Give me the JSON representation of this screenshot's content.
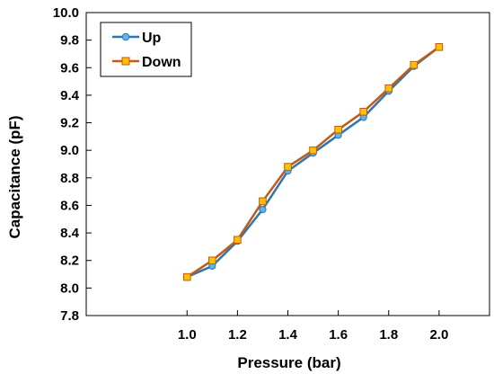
{
  "chart_data": {
    "type": "line",
    "title": "",
    "xlabel": "Pressure (bar)",
    "ylabel": "Capacitance (pF)",
    "xlim": [
      0.6,
      2.2
    ],
    "ylim": [
      7.8,
      10.0
    ],
    "xticks": [
      1.0,
      1.2,
      1.4,
      1.6,
      1.8,
      2.0
    ],
    "xtick_labels": [
      "1.0",
      "1.2",
      "1.4",
      "1.6",
      "1.8",
      "2.0"
    ],
    "yticks": [
      7.8,
      8.0,
      8.2,
      8.4,
      8.6,
      8.8,
      9.0,
      9.2,
      9.4,
      9.6,
      9.8,
      10.0
    ],
    "ytick_labels": [
      "7.8",
      "8.0",
      "8.2",
      "8.4",
      "8.6",
      "8.8",
      "9.0",
      "9.2",
      "9.4",
      "9.6",
      "9.8",
      "10.0"
    ],
    "grid": false,
    "legend_position": "top-left",
    "x": [
      1.0,
      1.1,
      1.2,
      1.3,
      1.4,
      1.5,
      1.6,
      1.7,
      1.8,
      1.9,
      2.0
    ],
    "series": [
      {
        "name": "Up",
        "marker": "circle",
        "line_color": "#2E75B6",
        "marker_color": "#5BB5E8",
        "values": [
          8.08,
          8.16,
          8.34,
          8.57,
          8.85,
          8.98,
          9.11,
          9.24,
          9.43,
          9.61,
          9.75
        ]
      },
      {
        "name": "Down",
        "marker": "square",
        "line_color": "#C55A11",
        "marker_color": "#FFC000",
        "values": [
          8.08,
          8.2,
          8.35,
          8.63,
          8.88,
          9.0,
          9.15,
          9.28,
          9.45,
          9.62,
          9.75
        ]
      }
    ]
  }
}
